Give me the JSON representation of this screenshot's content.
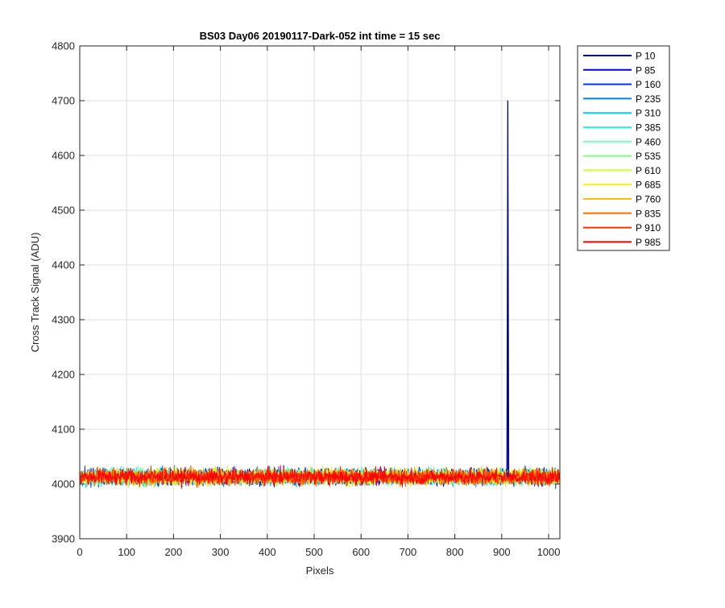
{
  "chart_data": {
    "type": "line",
    "title": "BS03 Day06 20190117-Dark-052 int time = 15 sec",
    "xlabel": "Pixels",
    "ylabel": "Cross Track Signal (ADU)",
    "xlim": [
      0,
      1024
    ],
    "ylim": [
      3900,
      4800
    ],
    "xticks": [
      0,
      100,
      200,
      300,
      400,
      500,
      600,
      700,
      800,
      900,
      1000
    ],
    "yticks": [
      3900,
      4000,
      4100,
      4200,
      4300,
      4400,
      4500,
      4600,
      4700,
      4800
    ],
    "grid": true,
    "legend_position": "outside-top-right",
    "noise_baseline": 4013,
    "noise_amplitude": 14,
    "spike": {
      "x": 913,
      "peak": 4700,
      "series": "P 10"
    },
    "series": [
      {
        "name": "P 10",
        "color": "#00008F"
      },
      {
        "name": "P 85",
        "color": "#0000DF"
      },
      {
        "name": "P 160",
        "color": "#0030FF"
      },
      {
        "name": "P 235",
        "color": "#0080FF"
      },
      {
        "name": "P 310",
        "color": "#00CFFF"
      },
      {
        "name": "P 385",
        "color": "#20FFDF"
      },
      {
        "name": "P 460",
        "color": "#70FFBF"
      },
      {
        "name": "P 535",
        "color": "#80FF80"
      },
      {
        "name": "P 610",
        "color": "#CFFF30"
      },
      {
        "name": "P 685",
        "color": "#FFEF00"
      },
      {
        "name": "P 760",
        "color": "#FFBF00"
      },
      {
        "name": "P 835",
        "color": "#FF7000"
      },
      {
        "name": "P 910",
        "color": "#FF3000"
      },
      {
        "name": "P 985",
        "color": "#FF0000"
      }
    ]
  }
}
